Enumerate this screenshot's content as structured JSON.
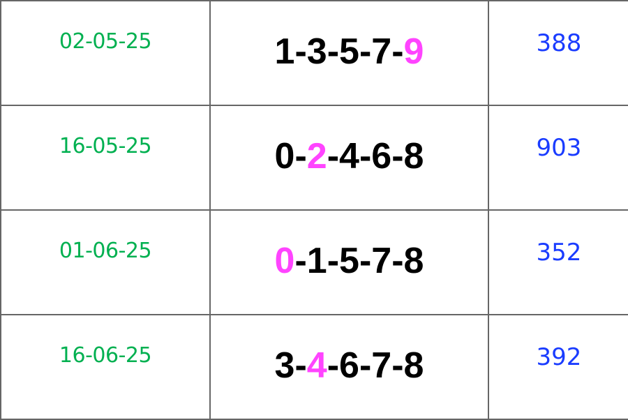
{
  "colors": {
    "date": "#00b050",
    "result": "#1a3cff",
    "highlight": "#ff44ff",
    "digits": "#000000"
  },
  "rows": [
    {
      "date": "02-05-25",
      "digits": [
        "1",
        "3",
        "5",
        "7",
        "9"
      ],
      "highlight_index": 4,
      "result": "388"
    },
    {
      "date": "16-05-25",
      "digits": [
        "0",
        "2",
        "4",
        "6",
        "8"
      ],
      "highlight_index": 1,
      "result": "903"
    },
    {
      "date": "01-06-25",
      "digits": [
        "0",
        "1",
        "5",
        "7",
        "8"
      ],
      "highlight_index": 0,
      "result": "352"
    },
    {
      "date": "16-06-25",
      "digits": [
        "3",
        "4",
        "6",
        "7",
        "8"
      ],
      "highlight_index": 1,
      "result": "392"
    }
  ]
}
